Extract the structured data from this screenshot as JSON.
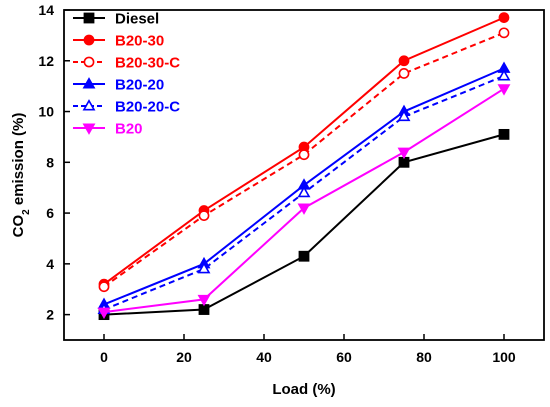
{
  "chart_data": {
    "type": "line",
    "title": "",
    "xlabel": "Load (%)",
    "ylabel_main": "CO",
    "ylabel_sub": "2",
    "ylabel_rest": " emission (%)",
    "x": [
      0,
      25,
      50,
      75,
      100
    ],
    "xlim": [
      -10,
      110
    ],
    "ylim": [
      1,
      14
    ],
    "x_ticks": [
      0,
      20,
      40,
      60,
      80,
      100
    ],
    "y_ticks": [
      2,
      4,
      6,
      8,
      10,
      12,
      14
    ],
    "grid": false,
    "legend_position": "top-left",
    "series": [
      {
        "name": "Diesel",
        "values": [
          2.0,
          2.2,
          4.3,
          8.0,
          9.1
        ],
        "color": "#000000",
        "line_style": "solid",
        "marker": "square",
        "filled": true
      },
      {
        "name": "B20-30",
        "values": [
          3.2,
          6.1,
          8.6,
          12.0,
          13.7
        ],
        "color": "#ff0000",
        "line_style": "solid",
        "marker": "circle",
        "filled": true
      },
      {
        "name": "B20-30-C",
        "values": [
          3.1,
          5.9,
          8.3,
          11.5,
          13.1
        ],
        "color": "#ff0000",
        "line_style": "dashed",
        "marker": "circle",
        "filled": false
      },
      {
        "name": "B20-20",
        "values": [
          2.4,
          4.0,
          7.1,
          10.0,
          11.7
        ],
        "color": "#0000ff",
        "line_style": "solid",
        "marker": "triangle-up",
        "filled": true
      },
      {
        "name": "B20-20-C",
        "values": [
          2.2,
          3.8,
          6.8,
          9.8,
          11.4
        ],
        "color": "#0000ff",
        "line_style": "dashed",
        "marker": "triangle-up",
        "filled": false
      },
      {
        "name": "B20",
        "values": [
          2.1,
          2.6,
          6.2,
          8.4,
          10.9
        ],
        "color": "#ff00ff",
        "line_style": "solid",
        "marker": "triangle-down",
        "filled": true
      }
    ]
  }
}
